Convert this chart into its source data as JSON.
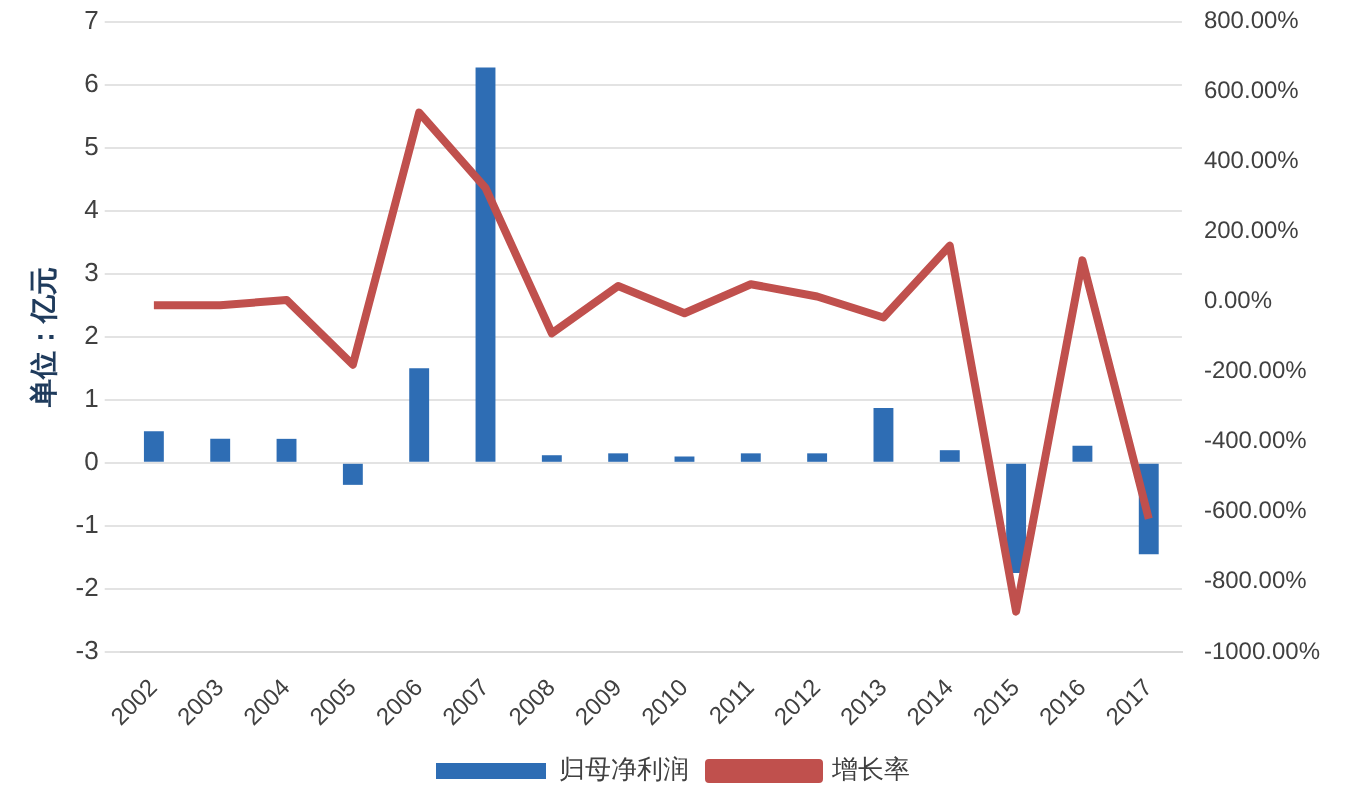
{
  "chart_data": {
    "type": "bar",
    "ylabel": "单位：亿元",
    "categories": [
      "2002",
      "2003",
      "2004",
      "2005",
      "2006",
      "2007",
      "2008",
      "2009",
      "2010",
      "2011",
      "2012",
      "2013",
      "2014",
      "2015",
      "2016",
      "2017"
    ],
    "series": [
      {
        "name": "归母净利润",
        "color": "#2e6db4",
        "values": [
          0.5,
          0.38,
          0.38,
          -0.35,
          1.5,
          6.27,
          0.12,
          0.15,
          0.1,
          0.15,
          0.15,
          0.87,
          0.2,
          -1.75,
          0.27,
          -1.45
        ]
      },
      {
        "name": "增长率",
        "type": "line",
        "axis": "y2",
        "color": "#c0504d",
        "values": [
          -10,
          -10,
          5,
          -180,
          540,
          325,
          -90,
          45,
          -33,
          50,
          15,
          -45,
          160,
          -885,
          118,
          -620
        ]
      }
    ],
    "ylim": [
      -3,
      7
    ],
    "yticks": [
      -3,
      -2,
      -1,
      0,
      1,
      2,
      3,
      4,
      5,
      6,
      7
    ],
    "y2lim": [
      -1000,
      800
    ],
    "y2ticks": [
      {
        "value": -1000,
        "label": "-1000.00%"
      },
      {
        "value": -800,
        "label": "-800.00%"
      },
      {
        "value": -600,
        "label": "-600.00%"
      },
      {
        "value": -400,
        "label": "-400.00%"
      },
      {
        "value": -200,
        "label": "-200.00%"
      },
      {
        "value": 0,
        "label": "0.00%"
      },
      {
        "value": 200,
        "label": "200.00%"
      },
      {
        "value": 400,
        "label": "400.00%"
      },
      {
        "value": 600,
        "label": "600.00%"
      },
      {
        "value": 800,
        "label": "800.00%"
      }
    ],
    "grid": "y",
    "legend": "bottom",
    "marker": "none",
    "line_style": "solid"
  }
}
